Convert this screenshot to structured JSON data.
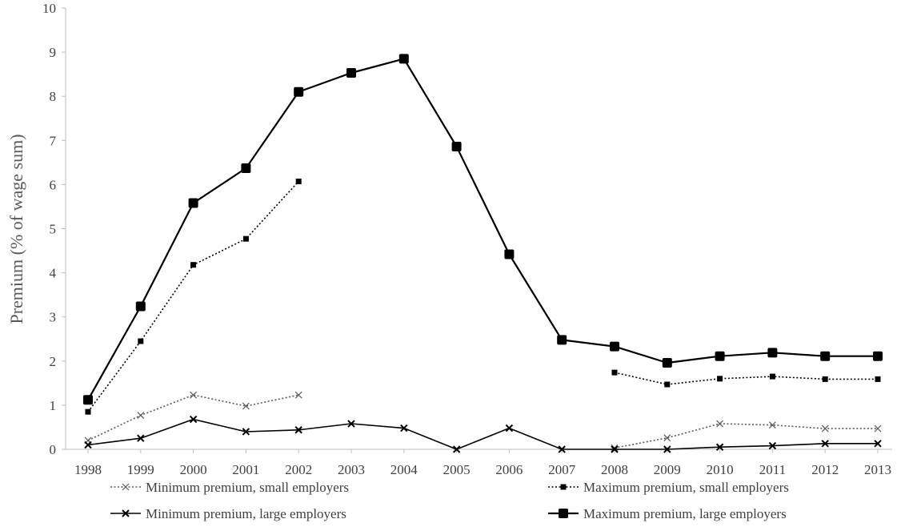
{
  "chart_data": {
    "type": "line",
    "title": "",
    "xlabel": "",
    "ylabel": "Premium (% of wage sum)",
    "x": [
      "1998",
      "1999",
      "2000",
      "2001",
      "2002",
      "2003",
      "2004",
      "2005",
      "2006",
      "2007",
      "2008",
      "2009",
      "2010",
      "2011",
      "2012",
      "2013"
    ],
    "ylim": [
      0,
      10
    ],
    "yticks": [
      0,
      1,
      2,
      3,
      4,
      5,
      6,
      7,
      8,
      9,
      10
    ],
    "grid": false,
    "legend_position": "bottom",
    "series": [
      {
        "name": "Minimum premium, small employers",
        "line": "dotted",
        "marker": "x",
        "color": "#595959",
        "values": [
          0.2,
          0.77,
          1.23,
          0.98,
          1.23,
          null,
          null,
          null,
          null,
          null,
          0.03,
          0.26,
          0.58,
          0.55,
          0.47,
          0.47
        ]
      },
      {
        "name": "Maximum premium, small employers",
        "line": "dotted",
        "marker": "small-square",
        "color": "#000000",
        "values": [
          0.85,
          2.45,
          4.18,
          4.77,
          6.07,
          null,
          null,
          null,
          null,
          null,
          1.74,
          1.47,
          1.6,
          1.65,
          1.59,
          1.59
        ]
      },
      {
        "name": "Minimum premium, large employers",
        "line": "solid",
        "marker": "x",
        "color": "#000000",
        "values": [
          0.1,
          0.25,
          0.68,
          0.4,
          0.44,
          0.58,
          0.48,
          0.0,
          0.48,
          0.0,
          0.0,
          0.0,
          0.05,
          0.08,
          0.13,
          0.13
        ]
      },
      {
        "name": "Maximum premium, large employers",
        "line": "solid",
        "marker": "square",
        "color": "#000000",
        "values": [
          1.12,
          3.24,
          5.58,
          6.37,
          8.1,
          8.53,
          8.85,
          6.86,
          4.42,
          2.48,
          2.33,
          1.96,
          2.11,
          2.19,
          2.11,
          2.11
        ]
      }
    ]
  }
}
